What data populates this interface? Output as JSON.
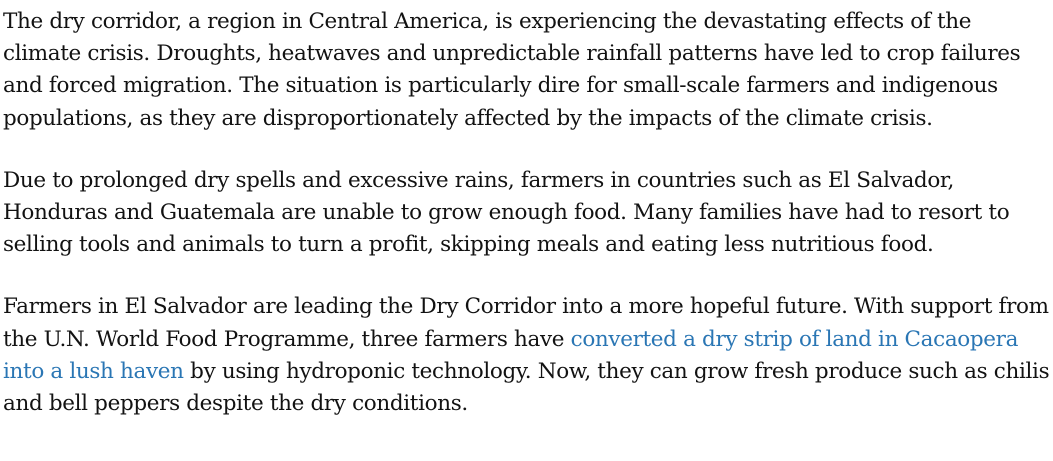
{
  "article": {
    "paragraphs": [
      {
        "text": "The dry corridor, a region in Central America, is experiencing the devastating effects of the climate crisis. Droughts, heatwaves and unpredictable rainfall patterns have led to crop failures and forced migration. The situation is particularly dire for small-scale farmers and indigenous populations, as they are disproportionately affected by the impacts of the climate crisis."
      },
      {
        "text": "Due to prolonged dry spells and excessive rains, farmers in countries such as El Salvador, Honduras and Guatemala are unable to grow enough food. Many families have had to resort to selling tools and animals to turn a profit, skipping meals and eating less nutritious food."
      },
      {
        "before": "Farmers in El Salvador are leading the Dry Corridor into a more hopeful future. With support from the U.N. World Food Programme, three farmers have ",
        "link": "converted a dry strip of land in Cacaopera into a lush haven",
        "after": " by using hydroponic technology. Now, they can grow fresh produce such as chilis and bell peppers despite the dry conditions."
      }
    ],
    "link_color": "#2a76b4"
  }
}
